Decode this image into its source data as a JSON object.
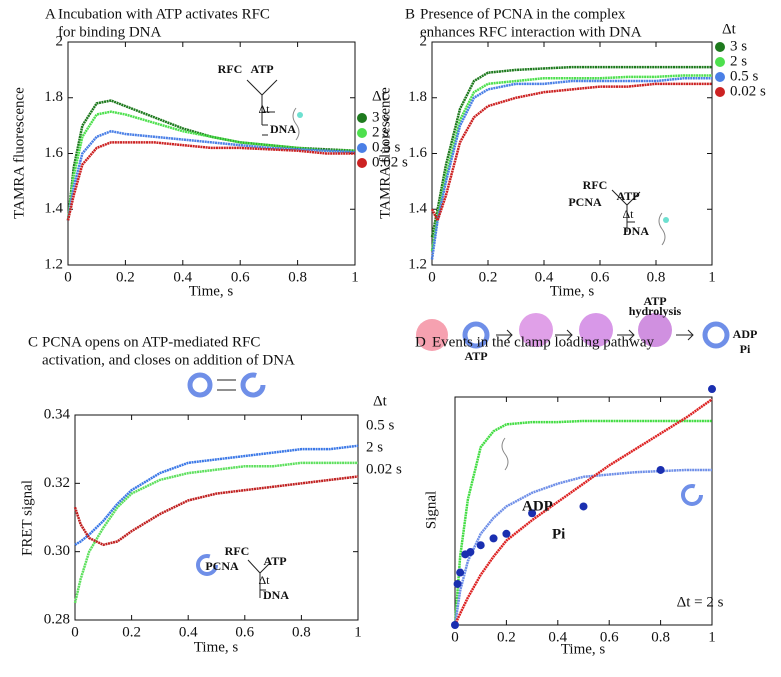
{
  "chart_data": [
    {
      "type": "line",
      "letter": "A",
      "title": [
        "Incubation with ATP activates RFC",
        "for binding DNA"
      ],
      "xlabel": "Time, s",
      "ylabel": "TAMRA fluorescence",
      "legend": "right",
      "legend_title": "Δt",
      "x": [
        0,
        0.02,
        0.05,
        0.1,
        0.15,
        0.2,
        0.3,
        0.4,
        0.5,
        0.6,
        0.7,
        0.8,
        0.9,
        1
      ],
      "series": [
        {
          "name": "3 s",
          "color": "#1e7a1e",
          "values": [
            1.36,
            1.55,
            1.7,
            1.78,
            1.79,
            1.77,
            1.73,
            1.69,
            1.66,
            1.64,
            1.63,
            1.62,
            1.615,
            1.61
          ]
        },
        {
          "name": "2 s",
          "color": "#4ee04e",
          "values": [
            1.36,
            1.52,
            1.66,
            1.74,
            1.75,
            1.74,
            1.71,
            1.68,
            1.66,
            1.64,
            1.63,
            1.62,
            1.61,
            1.61
          ]
        },
        {
          "name": "0.5 s",
          "color": "#4a7fe6",
          "values": [
            1.36,
            1.48,
            1.6,
            1.66,
            1.68,
            1.67,
            1.66,
            1.65,
            1.64,
            1.63,
            1.62,
            1.615,
            1.61,
            1.605
          ]
        },
        {
          "name": "0.02 s",
          "color": "#cc2222",
          "values": [
            1.36,
            1.45,
            1.56,
            1.62,
            1.64,
            1.64,
            1.64,
            1.63,
            1.62,
            1.62,
            1.615,
            1.61,
            1.6,
            1.6
          ]
        }
      ],
      "xlim": [
        0,
        1
      ],
      "ylim": [
        1.2,
        2
      ],
      "xticks": [
        0,
        0.2,
        0.4,
        0.6,
        0.8,
        1
      ],
      "yticks": [
        1.2,
        1.4,
        1.6,
        1.8,
        2
      ],
      "annotations": [
        "RFC",
        "ATP",
        "Δt",
        "DNA"
      ]
    },
    {
      "type": "line",
      "letter": "B",
      "title": [
        "Presence of PCNA in the complex",
        "enhances RFC interaction with DNA"
      ],
      "xlabel": "Time, s",
      "ylabel": "TAMRA fluorescence",
      "legend": "right",
      "legend_title": "Δt",
      "x": [
        0,
        0.02,
        0.05,
        0.1,
        0.15,
        0.2,
        0.3,
        0.4,
        0.5,
        0.6,
        0.7,
        0.8,
        0.9,
        1
      ],
      "series": [
        {
          "name": "3 s",
          "color": "#1e7a1e",
          "values": [
            1.3,
            1.4,
            1.56,
            1.76,
            1.86,
            1.89,
            1.9,
            1.905,
            1.91,
            1.91,
            1.91,
            1.91,
            1.91,
            1.91
          ]
        },
        {
          "name": "2 s",
          "color": "#4ee04e",
          "values": [
            1.25,
            1.37,
            1.52,
            1.72,
            1.82,
            1.85,
            1.86,
            1.87,
            1.87,
            1.87,
            1.875,
            1.875,
            1.88,
            1.88
          ]
        },
        {
          "name": "0.5 s",
          "color": "#4a7fe6",
          "values": [
            1.22,
            1.36,
            1.5,
            1.7,
            1.8,
            1.83,
            1.85,
            1.85,
            1.86,
            1.86,
            1.86,
            1.86,
            1.87,
            1.87
          ]
        },
        {
          "name": "0.02 s",
          "color": "#cc2222",
          "values": [
            1.4,
            1.36,
            1.45,
            1.64,
            1.73,
            1.77,
            1.8,
            1.82,
            1.83,
            1.84,
            1.84,
            1.85,
            1.85,
            1.85
          ]
        }
      ],
      "xlim": [
        0,
        1
      ],
      "ylim": [
        1.2,
        2
      ],
      "xticks": [
        0,
        0.2,
        0.4,
        0.6,
        0.8,
        1
      ],
      "yticks": [
        1.2,
        1.4,
        1.6,
        1.8,
        2
      ],
      "annotations": [
        "RFC",
        "PCNA",
        "ATP",
        "Δt",
        "DNA"
      ]
    },
    {
      "type": "line",
      "letter": "C",
      "title": [
        "PCNA opens on ATP-mediated RFC",
        "activation, and closes on addition of DNA"
      ],
      "xlabel": "Time, s",
      "ylabel": "FRET signal",
      "legend": "end",
      "legend_title": "Δt",
      "x": [
        0,
        0.02,
        0.05,
        0.1,
        0.15,
        0.2,
        0.3,
        0.4,
        0.5,
        0.6,
        0.7,
        0.8,
        0.9,
        1
      ],
      "series": [
        {
          "name": "0.5 s",
          "color": "#3b78e7",
          "values": [
            0.302,
            0.303,
            0.305,
            0.309,
            0.314,
            0.318,
            0.323,
            0.326,
            0.327,
            0.328,
            0.329,
            0.33,
            0.33,
            0.331
          ]
        },
        {
          "name": "2 s",
          "color": "#5ee05e",
          "values": [
            0.285,
            0.292,
            0.3,
            0.307,
            0.313,
            0.317,
            0.321,
            0.323,
            0.324,
            0.325,
            0.325,
            0.326,
            0.326,
            0.326
          ]
        },
        {
          "name": "0.02 s",
          "color": "#c02020",
          "values": [
            0.313,
            0.308,
            0.304,
            0.302,
            0.303,
            0.306,
            0.311,
            0.315,
            0.317,
            0.318,
            0.319,
            0.32,
            0.321,
            0.322
          ]
        }
      ],
      "xlim": [
        0,
        1
      ],
      "ylim": [
        0.28,
        0.34
      ],
      "xticks": [
        0,
        0.2,
        0.4,
        0.6,
        0.8,
        1
      ],
      "yticks": [
        0.28,
        {
          "value": 0.3,
          "label": "0.30"
        },
        0.32,
        0.34
      ],
      "annotations": [
        "RFC",
        "PCNA",
        "ATP",
        "Δt",
        "DNA"
      ]
    },
    {
      "type": "line",
      "letter": "D",
      "title": [
        "Events in the clamp loading pathway"
      ],
      "xlabel": "Time, s",
      "ylabel": "Signal",
      "legend": "inline",
      "x": [
        0,
        0.02,
        0.05,
        0.1,
        0.15,
        0.2,
        0.3,
        0.4,
        0.5,
        0.6,
        0.7,
        0.8,
        0.9,
        1
      ],
      "series": [
        {
          "color": "#44dd44",
          "values": [
            0,
            0.3,
            0.55,
            0.78,
            0.85,
            0.88,
            0.89,
            0.89,
            0.895,
            0.895,
            0.895,
            0.895,
            0.895,
            0.895
          ]
        },
        {
          "name": "ADP",
          "color": "#6f8fe8",
          "values": [
            0,
            0.15,
            0.28,
            0.4,
            0.47,
            0.52,
            0.58,
            0.62,
            0.65,
            0.66,
            0.67,
            0.675,
            0.68,
            0.68
          ]
        },
        {
          "name": "Pi",
          "color": "#dd2222",
          "values": [
            0,
            0.05,
            0.12,
            0.22,
            0.3,
            0.37,
            0.46,
            0.54,
            0.62,
            0.7,
            0.77,
            0.84,
            0.91,
            0.99
          ]
        },
        {
          "type": "scatter",
          "color": "#1a2fb0",
          "x": [
            0,
            0.01,
            0.02,
            0.04,
            0.06,
            0.1,
            0.15,
            0.2,
            0.3,
            0.5,
            0.8,
            1
          ],
          "values": [
            0,
            0.18,
            0.23,
            0.31,
            0.32,
            0.35,
            0.38,
            0.4,
            0.49,
            0.52,
            0.68,
            1.035
          ]
        }
      ],
      "xlim": [
        0,
        1
      ],
      "ylim": [
        0,
        1
      ],
      "xticks": [
        0,
        0.2,
        0.4,
        0.6,
        0.8,
        1
      ],
      "annotations": [
        "ATP",
        "ATP",
        "hydrolysis",
        "ADP",
        "Pi",
        "Δt = 2 s"
      ]
    }
  ]
}
